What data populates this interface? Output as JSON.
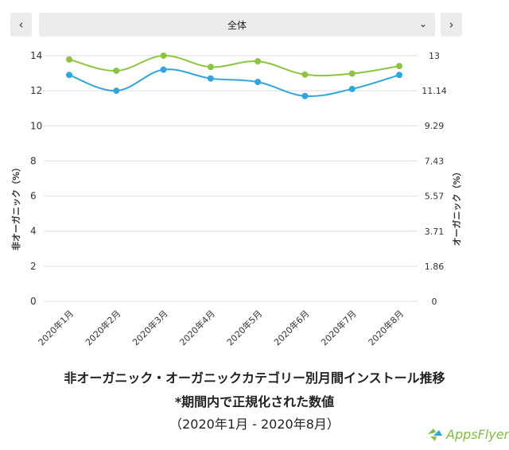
{
  "toolbar": {
    "prev_label": "‹",
    "next_label": "›",
    "select_value": "全体",
    "select_caret": "⌄"
  },
  "captions": {
    "line1": "非オーガニック・オーガニックカテゴリー別月間インストール推移",
    "line2": "*期間内で正規化された数値",
    "line3": "（2020年1月 - 2020年8月）"
  },
  "logo": {
    "text": "AppsFlyer",
    "color": "#7fbf3f",
    "icon": "appsflyer-logo-icon"
  },
  "chart_data": {
    "type": "line",
    "categories": [
      "2020年1月",
      "2020年2月",
      "2020年3月",
      "2020年4月",
      "2020年5月",
      "2020年6月",
      "2020年7月",
      "2020年8月"
    ],
    "series": [
      {
        "name": "",
        "axis": "left",
        "color": "#2fa6e0",
        "values": [
          12.9,
          12.0,
          13.2,
          12.7,
          12.5,
          11.7,
          12.1,
          12.9
        ]
      },
      {
        "name": "",
        "axis": "right",
        "color": "#8cc63f",
        "values": [
          12.8,
          12.2,
          13.0,
          12.4,
          12.7,
          12.0,
          12.05,
          12.45
        ]
      }
    ],
    "ylabel_left": "非オーガニック（%）",
    "ylabel_right": "オーガニック（%）",
    "ylim_left": [
      0,
      14
    ],
    "ylim_right": [
      0,
      13
    ],
    "yticks_left": [
      "0",
      "2",
      "4",
      "6",
      "8",
      "10",
      "12",
      "14"
    ],
    "yticks_right": [
      "0",
      "1.86",
      "3.71",
      "5.57",
      "7.43",
      "9.29",
      "11.14",
      "13"
    ],
    "grid": true
  }
}
